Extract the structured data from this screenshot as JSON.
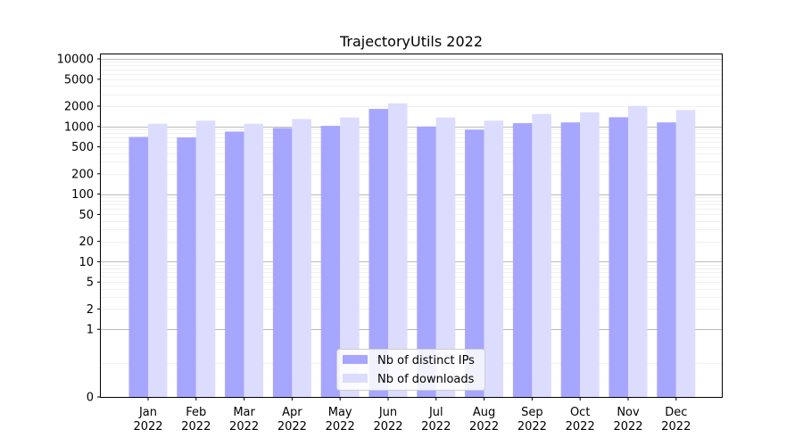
{
  "chart_data": {
    "type": "bar",
    "title": "TrajectoryUtils 2022",
    "xlabel": "",
    "ylabel": "",
    "y_scale": "symlog",
    "ylim": [
      0,
      12000
    ],
    "yticks": [
      0,
      1,
      2,
      5,
      10,
      20,
      50,
      100,
      200,
      500,
      1000,
      2000,
      5000,
      10000
    ],
    "grid": "horizontal major and minor",
    "legend_position": "lower center",
    "categories": [
      "Jan\n2022",
      "Feb\n2022",
      "Mar\n2022",
      "Apr\n2022",
      "May\n2022",
      "Jun\n2022",
      "Jul\n2022",
      "Aug\n2022",
      "Sep\n2022",
      "Oct\n2022",
      "Nov\n2022",
      "Dec\n2022"
    ],
    "series": [
      {
        "name": "Nb of distinct IPs",
        "color": "#a6a6ff",
        "values": [
          700,
          690,
          840,
          950,
          1020,
          1820,
          1000,
          900,
          1120,
          1150,
          1370,
          1150
        ]
      },
      {
        "name": "Nb of downloads",
        "color": "#dcdcff",
        "values": [
          1100,
          1220,
          1100,
          1290,
          1360,
          2200,
          1360,
          1220,
          1530,
          1620,
          2020,
          1750
        ]
      }
    ]
  }
}
